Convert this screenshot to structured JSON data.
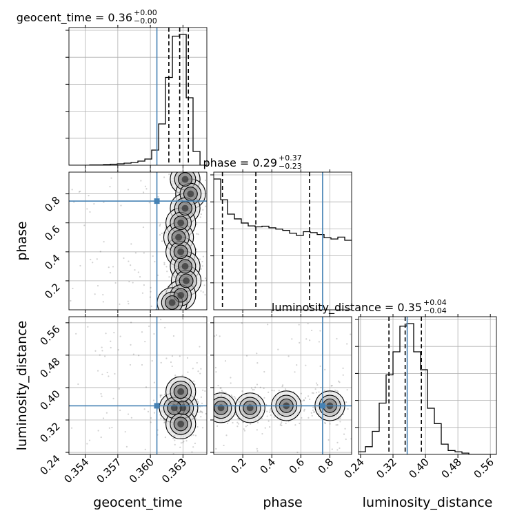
{
  "colors": {
    "truth": "#4682b4",
    "hist": "#000000",
    "grid": "#b0b0b0",
    "quantile": "#000000"
  },
  "chart_data": {
    "type": "corner",
    "parameters": [
      "geocent_time",
      "phase",
      "luminosity_distance"
    ],
    "axis_labels": {
      "geocent_time": "geocent_time",
      "phase": "phase",
      "luminosity_distance": "luminosity_distance"
    },
    "ranges": {
      "geocent_time": [
        0.3525,
        0.3652
      ],
      "phase": [
        0.0,
        0.95
      ],
      "luminosity_distance": [
        0.235,
        0.575
      ]
    },
    "ticks": {
      "geocent_time": {
        "values": [
          0.354,
          0.357,
          0.36,
          0.363
        ],
        "labels": [
          "0.354",
          "0.357",
          "0.360",
          "0.363"
        ]
      },
      "phase": {
        "values": [
          0.2,
          0.4,
          0.6,
          0.8
        ],
        "labels": [
          "0.2",
          "0.4",
          "0.6",
          "0.8"
        ]
      },
      "luminosity_distance": {
        "values": [
          0.24,
          0.32,
          0.4,
          0.48,
          0.56
        ],
        "labels": [
          "0.24",
          "0.32",
          "0.40",
          "0.48",
          "0.56"
        ]
      }
    },
    "truths": {
      "geocent_time": 0.3606,
      "phase": 0.75,
      "luminosity_distance": 0.355
    },
    "quantiles": {
      "geocent_time": [
        0.3617,
        0.3627,
        0.3635
      ],
      "phase": [
        0.06,
        0.29,
        0.66
      ],
      "luminosity_distance": [
        0.31,
        0.35,
        0.39
      ]
    },
    "titles": [
      {
        "param": "geocent_time",
        "name": "geocent_time",
        "value": "0.36",
        "plus": "+0.00",
        "minus": "−0.00"
      },
      {
        "param": "phase",
        "name": "phase",
        "value": "0.29",
        "plus": "+0.37",
        "minus": "−0.23"
      },
      {
        "param": "luminosity_distance",
        "name": "luminosity_distance",
        "value": "0.35",
        "plus": "+0.04",
        "minus": "−0.04"
      }
    ],
    "histograms": {
      "geocent_time": {
        "bin_edges": [
          0.3525,
          0.35314,
          0.35377,
          0.35441,
          0.35504,
          0.35568,
          0.35631,
          0.35695,
          0.35758,
          0.35822,
          0.35885,
          0.35949,
          0.36012,
          0.36076,
          0.36139,
          0.36203,
          0.36266,
          0.3633,
          0.36393,
          0.36457,
          0.3652
        ],
        "counts": [
          0,
          0,
          0,
          1,
          1,
          2,
          3,
          4,
          6,
          8,
          12,
          18,
          44,
          120,
          255,
          375,
          380,
          196,
          40,
          0
        ]
      },
      "phase": {
        "bin_edges": [
          0.0,
          0.0475,
          0.095,
          0.1425,
          0.19,
          0.2375,
          0.285,
          0.3325,
          0.38,
          0.4275,
          0.475,
          0.5225,
          0.57,
          0.6175,
          0.665,
          0.7125,
          0.76,
          0.8075,
          0.855,
          0.9025,
          0.95
        ],
        "counts": [
          410,
          345,
          300,
          285,
          272,
          263,
          260,
          262,
          257,
          253,
          249,
          240,
          233,
          245,
          242,
          236,
          226,
          222,
          228,
          218
        ]
      },
      "luminosity_distance": {
        "bin_edges": [
          0.235,
          0.252,
          0.269,
          0.286,
          0.303,
          0.32,
          0.337,
          0.354,
          0.371,
          0.388,
          0.405,
          0.422,
          0.439,
          0.456,
          0.473,
          0.49,
          0.507,
          0.524,
          0.541,
          0.558,
          0.575
        ],
        "counts": [
          2,
          6,
          18,
          40,
          62,
          80,
          100,
          102,
          80,
          66,
          36,
          24,
          8,
          3,
          2,
          1,
          0,
          0,
          0,
          0
        ]
      }
    },
    "density2d": {
      "geocent_time__phase": [
        {
          "x": 0.3632,
          "y": 0.9
        },
        {
          "x": 0.3637,
          "y": 0.8
        },
        {
          "x": 0.3632,
          "y": 0.7
        },
        {
          "x": 0.3628,
          "y": 0.6
        },
        {
          "x": 0.3626,
          "y": 0.5
        },
        {
          "x": 0.3628,
          "y": 0.4
        },
        {
          "x": 0.3632,
          "y": 0.3
        },
        {
          "x": 0.3633,
          "y": 0.2
        },
        {
          "x": 0.3628,
          "y": 0.1
        },
        {
          "x": 0.362,
          "y": 0.05
        }
      ],
      "geocent_time__luminosity_distance": [
        {
          "x": 0.363,
          "y": 0.35
        },
        {
          "x": 0.3622,
          "y": 0.35
        },
        {
          "x": 0.3628,
          "y": 0.39
        },
        {
          "x": 0.3628,
          "y": 0.31
        }
      ],
      "phase__luminosity_distance": [
        {
          "x": 0.05,
          "y": 0.35
        },
        {
          "x": 0.25,
          "y": 0.35
        },
        {
          "x": 0.5,
          "y": 0.355
        },
        {
          "x": 0.8,
          "y": 0.355
        }
      ]
    }
  }
}
